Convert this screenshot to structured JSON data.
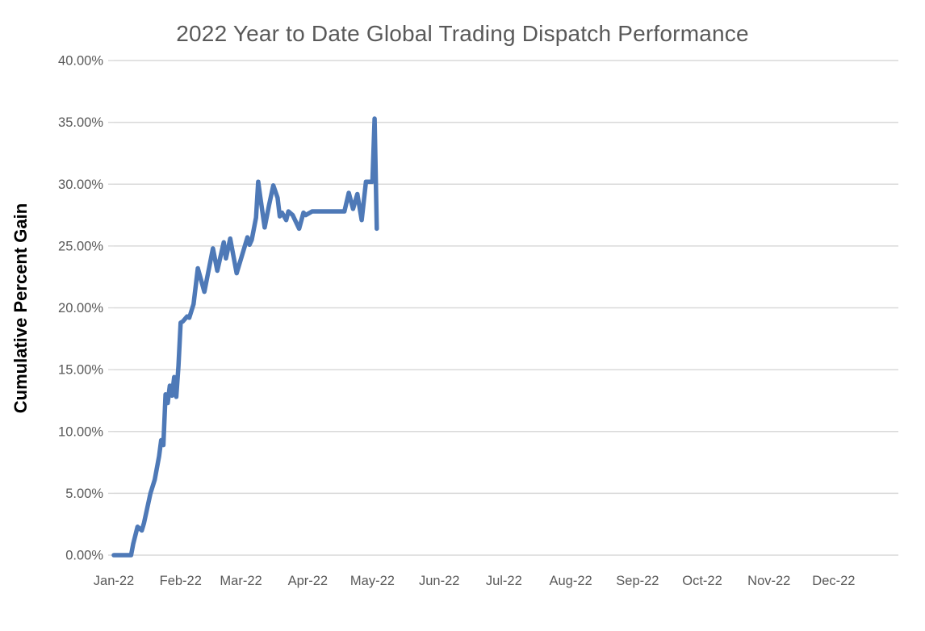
{
  "chart": {
    "title": "2022 Year to Date Global Trading Dispatch Performance",
    "y_axis_title": "Cumulative Percent Gain"
  },
  "chart_data": {
    "type": "line",
    "title": "2022 Year to Date Global Trading Dispatch Performance",
    "xlabel": "",
    "ylabel": "Cumulative Percent Gain",
    "ylim": [
      0,
      40
    ],
    "y_tick_step_pct": 5,
    "y_tick_labels": [
      "0.00%",
      "5.00%",
      "10.00%",
      "15.00%",
      "20.00%",
      "25.00%",
      "30.00%",
      "35.00%",
      "40.00%"
    ],
    "x_tick_labels": [
      "Jan-22",
      "Feb-22",
      "Mar-22",
      "Apr-22",
      "May-22",
      "Jun-22",
      "Jul-22",
      "Aug-22",
      "Sep-22",
      "Oct-22",
      "Nov-22",
      "Dec-22"
    ],
    "x_axis_unit": "days since Jan 1 2022, ticks at month starts",
    "month_start_days": [
      0,
      31,
      59,
      90,
      120,
      151,
      181,
      212,
      243,
      273,
      304,
      334
    ],
    "x_range_days": [
      0,
      364
    ],
    "grid": "horizontal",
    "legend": "none",
    "line_color": "#4e79b7",
    "series": [
      {
        "name": "Cumulative Percent Gain",
        "points_day_pct": [
          [
            0,
            0.0
          ],
          [
            8,
            0.0
          ],
          [
            9,
            0.9
          ],
          [
            11,
            2.3
          ],
          [
            13,
            2.0
          ],
          [
            14,
            2.6
          ],
          [
            17,
            5.0
          ],
          [
            19,
            6.1
          ],
          [
            21,
            8.0
          ],
          [
            22,
            9.3
          ],
          [
            23,
            8.9
          ],
          [
            24,
            13.0
          ],
          [
            25,
            12.3
          ],
          [
            26,
            13.7
          ],
          [
            27,
            12.9
          ],
          [
            28,
            14.4
          ],
          [
            29,
            12.8
          ],
          [
            30,
            15.3
          ],
          [
            31,
            18.8
          ],
          [
            32,
            18.9
          ],
          [
            34,
            19.3
          ],
          [
            35,
            19.2
          ],
          [
            37,
            20.3
          ],
          [
            39,
            23.2
          ],
          [
            42,
            21.3
          ],
          [
            46,
            24.8
          ],
          [
            48,
            23.0
          ],
          [
            51,
            25.3
          ],
          [
            52,
            24.0
          ],
          [
            54,
            25.6
          ],
          [
            57,
            22.8
          ],
          [
            62,
            25.7
          ],
          [
            63,
            25.1
          ],
          [
            64,
            25.5
          ],
          [
            66,
            27.3
          ],
          [
            67,
            30.2
          ],
          [
            68,
            28.9
          ],
          [
            70,
            26.5
          ],
          [
            72,
            28.3
          ],
          [
            74,
            29.9
          ],
          [
            76,
            28.9
          ],
          [
            77,
            27.4
          ],
          [
            78,
            27.7
          ],
          [
            80,
            27.1
          ],
          [
            81,
            27.8
          ],
          [
            83,
            27.5
          ],
          [
            86,
            26.4
          ],
          [
            88,
            27.7
          ],
          [
            89,
            27.5
          ],
          [
            92,
            27.8
          ],
          [
            107,
            27.8
          ],
          [
            109,
            29.3
          ],
          [
            111,
            28.0
          ],
          [
            113,
            29.2
          ],
          [
            115,
            27.1
          ],
          [
            117,
            30.2
          ],
          [
            120,
            30.2
          ],
          [
            121,
            35.3
          ],
          [
            122,
            26.4
          ]
        ]
      }
    ]
  },
  "colors": {
    "background": "#ffffff",
    "gridline": "#d9d9d9",
    "tick_text": "#595959",
    "title_text": "#595959",
    "y_axis_title_text": "#000000",
    "line": "#4e79b7"
  }
}
